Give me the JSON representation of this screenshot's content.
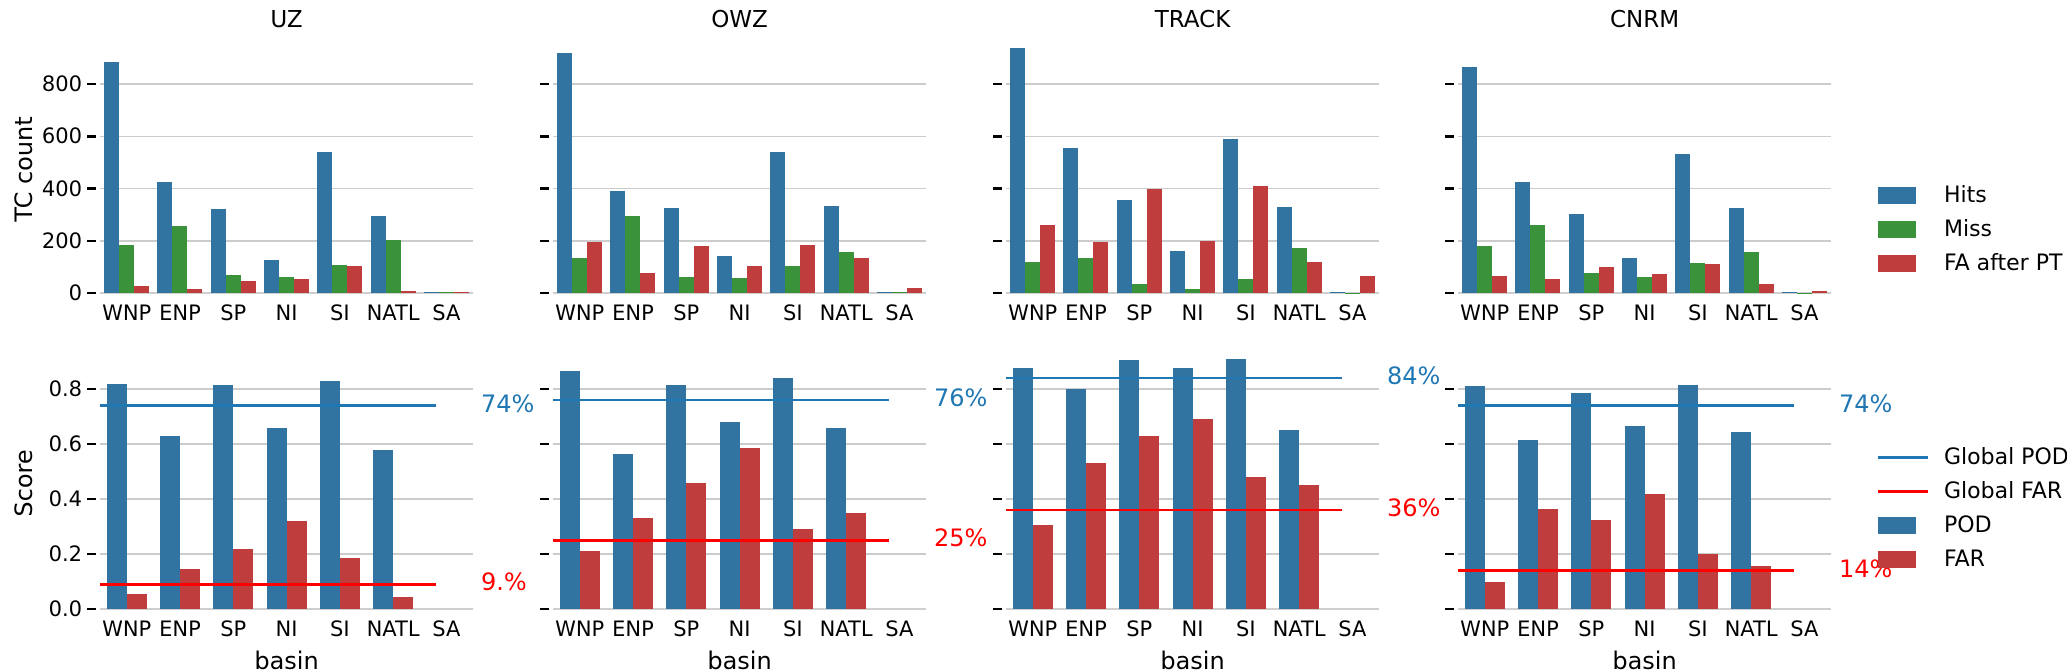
{
  "figure_title": "",
  "colors": {
    "hits_pod_bar": "#3274a1",
    "miss_bar": "#3a923a",
    "fa_far_bar": "#c03d3e",
    "global_pod_line": "#1f77b4",
    "global_far_line": "#ff0000",
    "grid": "#cccccc",
    "text": "#000000"
  },
  "legend_top": {
    "items": [
      {
        "label": "Hits",
        "type": "patch",
        "color": "#3274a1"
      },
      {
        "label": "Miss",
        "type": "patch",
        "color": "#3a923a"
      },
      {
        "label": "FA after PT",
        "type": "patch",
        "color": "#c03d3e"
      }
    ]
  },
  "legend_bottom": {
    "items": [
      {
        "label": "Global POD",
        "type": "line",
        "color": "#1f77b4"
      },
      {
        "label": "Global FAR",
        "type": "line",
        "color": "#ff0000"
      },
      {
        "label": "POD",
        "type": "patch",
        "color": "#3274a1"
      },
      {
        "label": "FAR",
        "type": "patch",
        "color": "#c03d3e"
      }
    ]
  },
  "chart_data": [
    {
      "type": "bar",
      "row": 0,
      "col": 0,
      "title": "UZ",
      "ylabel": "TC count",
      "xlabel": "",
      "categories": [
        "WNP",
        "ENP",
        "SP",
        "NI",
        "SI",
        "NATL",
        "SA"
      ],
      "ylim": [
        0,
        950
      ],
      "grid": true,
      "yticks": [
        0,
        200,
        400,
        600,
        800
      ],
      "ytick_labels": [
        "0",
        "200",
        "400",
        "600",
        "800"
      ],
      "series": [
        {
          "name": "Hits",
          "color": "#3274a1",
          "values": [
            885,
            425,
            320,
            125,
            540,
            295,
            4
          ]
        },
        {
          "name": "Miss",
          "color": "#3a923a",
          "values": [
            185,
            255,
            68,
            62,
            108,
            202,
            2
          ]
        },
        {
          "name": "FA after PT",
          "color": "#c03d3e",
          "values": [
            28,
            15,
            47,
            55,
            103,
            8,
            2
          ]
        }
      ],
      "reflines": []
    },
    {
      "type": "bar",
      "row": 0,
      "col": 1,
      "title": "OWZ",
      "ylabel": "",
      "xlabel": "",
      "categories": [
        "WNP",
        "ENP",
        "SP",
        "NI",
        "SI",
        "NATL",
        "SA"
      ],
      "ylim": [
        0,
        950
      ],
      "grid": true,
      "yticks": [
        0,
        200,
        400,
        600,
        800
      ],
      "ytick_labels": [
        "",
        "",
        "",
        "",
        ""
      ],
      "series": [
        {
          "name": "Hits",
          "color": "#3274a1",
          "values": [
            920,
            390,
            325,
            140,
            540,
            335,
            2
          ]
        },
        {
          "name": "Miss",
          "color": "#3a923a",
          "values": [
            135,
            295,
            63,
            57,
            103,
            158,
            3
          ]
        },
        {
          "name": "FA after PT",
          "color": "#c03d3e",
          "values": [
            195,
            77,
            182,
            105,
            184,
            135,
            20
          ]
        }
      ],
      "reflines": []
    },
    {
      "type": "bar",
      "row": 0,
      "col": 2,
      "title": "TRACK",
      "ylabel": "",
      "xlabel": "",
      "categories": [
        "WNP",
        "ENP",
        "SP",
        "NI",
        "SI",
        "NATL",
        "SA"
      ],
      "ylim": [
        0,
        950
      ],
      "grid": true,
      "yticks": [
        0,
        200,
        400,
        600,
        800
      ],
      "ytick_labels": [
        "",
        "",
        "",
        "",
        ""
      ],
      "series": [
        {
          "name": "Hits",
          "color": "#3274a1",
          "values": [
            938,
            555,
            355,
            162,
            590,
            330,
            4
          ]
        },
        {
          "name": "Miss",
          "color": "#3a923a",
          "values": [
            120,
            135,
            33,
            16,
            54,
            172,
            1
          ]
        },
        {
          "name": "FA after PT",
          "color": "#c03d3e",
          "values": [
            260,
            197,
            400,
            200,
            410,
            120,
            65
          ]
        }
      ],
      "reflines": []
    },
    {
      "type": "bar",
      "row": 0,
      "col": 3,
      "title": "CNRM",
      "ylabel": "",
      "xlabel": "",
      "categories": [
        "WNP",
        "ENP",
        "SP",
        "NI",
        "SI",
        "NATL",
        "SA"
      ],
      "ylim": [
        0,
        950
      ],
      "grid": true,
      "yticks": [
        0,
        200,
        400,
        600,
        800
      ],
      "ytick_labels": [
        "",
        "",
        "",
        "",
        ""
      ],
      "series": [
        {
          "name": "Hits",
          "color": "#3274a1",
          "values": [
            866,
            424,
            303,
            133,
            532,
            325,
            2
          ]
        },
        {
          "name": "Miss",
          "color": "#3a923a",
          "values": [
            182,
            260,
            77,
            63,
            115,
            158,
            1
          ]
        },
        {
          "name": "FA after PT",
          "color": "#c03d3e",
          "values": [
            66,
            53,
            99,
            71,
            111,
            33,
            6
          ]
        }
      ],
      "reflines": []
    },
    {
      "type": "bar",
      "row": 1,
      "col": 0,
      "title": "",
      "ylabel": "Score",
      "xlabel": "basin",
      "categories": [
        "WNP",
        "ENP",
        "SP",
        "NI",
        "SI",
        "NATL",
        "SA"
      ],
      "ylim": [
        0,
        0.92
      ],
      "grid": true,
      "yticks": [
        0,
        0.2,
        0.4,
        0.6,
        0.8
      ],
      "ytick_labels": [
        "0.0",
        "0.2",
        "0.4",
        "0.6",
        "0.8"
      ],
      "series": [
        {
          "name": "POD",
          "color": "#3274a1",
          "values": [
            0.82,
            0.63,
            0.815,
            0.66,
            0.83,
            0.58,
            0
          ]
        },
        {
          "name": "FAR",
          "color": "#c03d3e",
          "values": [
            0.055,
            0.145,
            0.22,
            0.32,
            0.185,
            0.045,
            0
          ]
        }
      ],
      "reflines": [
        {
          "name": "Global POD",
          "value": 0.74,
          "label": "74%",
          "color": "#1f77b4"
        },
        {
          "name": "Global FAR",
          "value": 0.09,
          "label": "9.%",
          "color": "#ff0000"
        }
      ]
    },
    {
      "type": "bar",
      "row": 1,
      "col": 1,
      "title": "",
      "ylabel": "",
      "xlabel": "basin",
      "categories": [
        "WNP",
        "ENP",
        "SP",
        "NI",
        "SI",
        "NATL",
        "SA"
      ],
      "ylim": [
        0,
        0.92
      ],
      "grid": true,
      "yticks": [
        0,
        0.2,
        0.4,
        0.6,
        0.8
      ],
      "ytick_labels": [
        "",
        "",
        "",
        "",
        ""
      ],
      "series": [
        {
          "name": "POD",
          "color": "#3274a1",
          "values": [
            0.865,
            0.565,
            0.815,
            0.68,
            0.84,
            0.66,
            0
          ]
        },
        {
          "name": "FAR",
          "color": "#c03d3e",
          "values": [
            0.21,
            0.33,
            0.46,
            0.585,
            0.29,
            0.35,
            0
          ]
        }
      ],
      "reflines": [
        {
          "name": "Global POD",
          "value": 0.76,
          "label": "76%",
          "color": "#1f77b4"
        },
        {
          "name": "Global FAR",
          "value": 0.25,
          "label": "25%",
          "color": "#ff0000"
        }
      ]
    },
    {
      "type": "bar",
      "row": 1,
      "col": 2,
      "title": "",
      "ylabel": "",
      "xlabel": "basin",
      "categories": [
        "WNP",
        "ENP",
        "SP",
        "NI",
        "SI",
        "NATL",
        "SA"
      ],
      "ylim": [
        0,
        0.92
      ],
      "grid": true,
      "yticks": [
        0,
        0.2,
        0.4,
        0.6,
        0.8
      ],
      "ytick_labels": [
        "",
        "",
        "",
        "",
        ""
      ],
      "series": [
        {
          "name": "POD",
          "color": "#3274a1",
          "values": [
            0.875,
            0.8,
            0.905,
            0.875,
            0.91,
            0.65,
            0
          ]
        },
        {
          "name": "FAR",
          "color": "#c03d3e",
          "values": [
            0.305,
            0.53,
            0.63,
            0.69,
            0.48,
            0.45,
            0
          ]
        }
      ],
      "reflines": [
        {
          "name": "Global POD",
          "value": 0.84,
          "label": "84%",
          "color": "#1f77b4"
        },
        {
          "name": "Global FAR",
          "value": 0.36,
          "label": "36%",
          "color": "#ff0000"
        }
      ]
    },
    {
      "type": "bar",
      "row": 1,
      "col": 3,
      "title": "",
      "ylabel": "",
      "xlabel": "basin",
      "categories": [
        "WNP",
        "ENP",
        "SP",
        "NI",
        "SI",
        "NATL",
        "SA"
      ],
      "ylim": [
        0,
        0.92
      ],
      "grid": true,
      "yticks": [
        0,
        0.2,
        0.4,
        0.6,
        0.8
      ],
      "ytick_labels": [
        "",
        "",
        "",
        "",
        ""
      ],
      "series": [
        {
          "name": "POD",
          "color": "#3274a1",
          "values": [
            0.81,
            0.615,
            0.785,
            0.665,
            0.815,
            0.645,
            0
          ]
        },
        {
          "name": "FAR",
          "color": "#c03d3e",
          "values": [
            0.1,
            0.365,
            0.325,
            0.42,
            0.2,
            0.155,
            0
          ]
        }
      ],
      "reflines": [
        {
          "name": "Global POD",
          "value": 0.74,
          "label": "74%",
          "color": "#1f77b4"
        },
        {
          "name": "Global FAR",
          "value": 0.14,
          "label": "14%",
          "color": "#ff0000"
        }
      ]
    }
  ]
}
